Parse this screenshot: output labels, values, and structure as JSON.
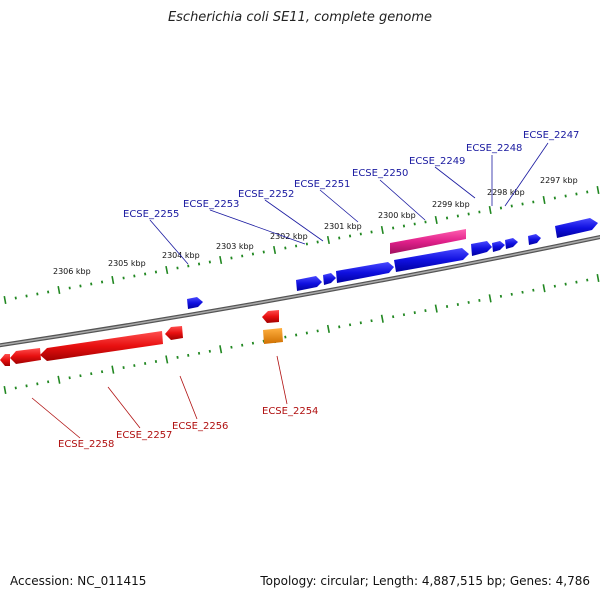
{
  "title": "Escherichia coli SE11, complete genome",
  "footer": {
    "accession": "Accession: NC_011415",
    "summary": "Topology: circular; Length: 4,887,515 bp; Genes: 4,786"
  },
  "scale_labels": [
    "2297 kbp",
    "2298 kbp",
    "2299 kbp",
    "2300 kbp",
    "2301 kbp",
    "2302 kbp",
    "2303 kbp",
    "2304 kbp",
    "2305 kbp",
    "2306 kbp"
  ],
  "gene_labels_top": [
    "ECSE_2247",
    "ECSE_2248",
    "ECSE_2249",
    "ECSE_2250",
    "ECSE_2251",
    "ECSE_2252",
    "ECSE_2253",
    "ECSE_2255"
  ],
  "gene_labels_bottom": [
    "ECSE_2254",
    "ECSE_2256",
    "ECSE_2257",
    "ECSE_2258"
  ],
  "colors": {
    "forward_gene": "#1010e0",
    "reverse_gene": "#e81010",
    "pink_feature": "#e0208a",
    "orange_feature": "#f08c00",
    "backbone": "#888888",
    "ticks": "#228822",
    "label_blue": "#1a1aa0",
    "label_red": "#b01010"
  }
}
